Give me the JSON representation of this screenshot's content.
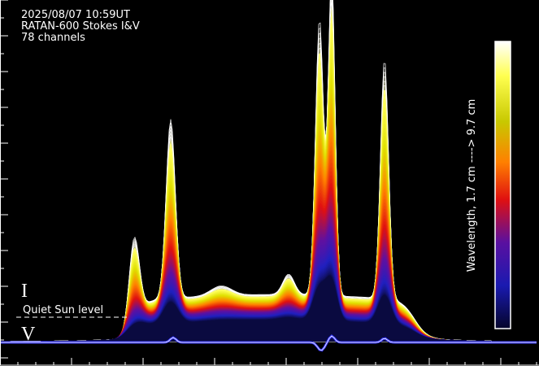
{
  "header": {
    "date": "2025/08/07 10:59UT",
    "instrument": "RATAN-600 Stokes I&V",
    "channels": "78 channels"
  },
  "labels": {
    "stokes_i": "I",
    "stokes_v": "V",
    "quiet_sun": "Quiet Sun level"
  },
  "colorbar": {
    "label": "Wavelength,  1.7 cm  ---->  9.7 cm"
  }
}
